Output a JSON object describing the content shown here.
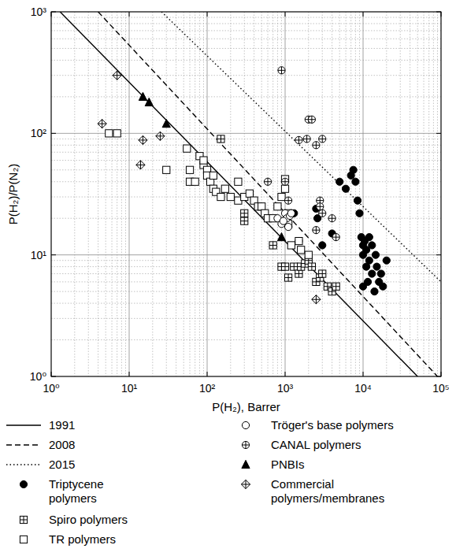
{
  "chart_data": {
    "type": "scatter",
    "x_label": "P(H₂), Barrer",
    "y_label": "P(H₂)/P(N₂)",
    "log": true,
    "grid": true,
    "legend": "bottom",
    "xlim": [
      1,
      100000
    ],
    "ylim": [
      1,
      1000
    ],
    "xticks": [
      {
        "value": 1,
        "label": "10⁰"
      },
      {
        "value": 10,
        "label": "10¹"
      },
      {
        "value": 100,
        "label": "10²"
      },
      {
        "value": 1000,
        "label": "10³"
      },
      {
        "value": 10000,
        "label": "10⁴"
      },
      {
        "value": 100000,
        "label": "10⁵"
      }
    ],
    "yticks": [
      {
        "value": 1,
        "label": "10⁰"
      },
      {
        "value": 10,
        "label": "10¹"
      },
      {
        "value": 100,
        "label": "10²"
      },
      {
        "value": 1000,
        "label": "10³"
      }
    ],
    "series": [
      {
        "name": "1991",
        "type": "line",
        "line_style": "solid",
        "color": "#000000",
        "x": [
          1.3,
          50000
        ],
        "values": [
          1000,
          1
        ]
      },
      {
        "name": "2008",
        "type": "line",
        "line_style": "dashed",
        "color": "#000000",
        "x": [
          4,
          90000
        ],
        "values": [
          1000,
          1
        ]
      },
      {
        "name": "2015",
        "type": "line",
        "line_style": "dotted",
        "color": "#000000",
        "x": [
          26,
          100000
        ],
        "values": [
          1000,
          6
        ]
      },
      {
        "name": "Triptycene polymers",
        "type": "scatter",
        "marker": "filled-circle",
        "color": "#000000",
        "x": [
          1300,
          1500,
          2500,
          2600,
          3000,
          4000,
          5000,
          6000,
          7000,
          7500,
          8000,
          8500,
          9000,
          9500,
          10000,
          10000,
          10500,
          11000,
          11000,
          12000,
          12000,
          13000,
          13000,
          14000,
          15000,
          16000,
          17000,
          18000,
          20000,
          11500,
          14500,
          10000
        ],
        "values": [
          22,
          13,
          24,
          20,
          12,
          15,
          40,
          35,
          45,
          50,
          40,
          28,
          22,
          14,
          10,
          12,
          13,
          8,
          11,
          14,
          9,
          12,
          7,
          5,
          8,
          6,
          7,
          5.5,
          9,
          6,
          10,
          5.5
        ]
      },
      {
        "name": "Spiro polymers",
        "type": "scatter",
        "marker": "square-cross",
        "color": "#000000",
        "x": [
          150,
          300,
          300,
          700,
          900,
          1000,
          1100,
          1300,
          1500,
          1600,
          1800,
          2000,
          2200,
          2500,
          2800,
          3500,
          4000,
          4500,
          3000
        ],
        "values": [
          90,
          19,
          22,
          12,
          8,
          8,
          6.5,
          8,
          7,
          8,
          8.5,
          9,
          8,
          6,
          6.5,
          5.5,
          5,
          5.5,
          7
        ]
      },
      {
        "name": "TR polymers",
        "type": "scatter",
        "marker": "square",
        "color": "#000000",
        "x": [
          5.5,
          7,
          30,
          55,
          60,
          60,
          70,
          80,
          90,
          100,
          100,
          110,
          120,
          130,
          150,
          170,
          200,
          250,
          300,
          350,
          400,
          450,
          500,
          550,
          600,
          700,
          800,
          900,
          1000,
          1000,
          1100,
          1500,
          1600,
          2000,
          1200,
          1100,
          250,
          90,
          120
        ],
        "values": [
          100,
          100,
          50,
          75,
          50,
          40,
          40,
          65,
          55,
          50,
          45,
          40,
          35,
          33,
          30,
          35,
          30,
          28,
          30,
          32,
          28,
          25,
          25,
          22,
          20,
          20,
          25,
          30,
          42,
          35,
          18,
          13,
          11,
          10,
          12,
          22,
          40,
          60,
          45
        ]
      },
      {
        "name": "Tröger's base polymers",
        "type": "scatter",
        "marker": "circle",
        "color": "#000000",
        "x": [
          800,
          900,
          1000,
          1050,
          1100,
          1150,
          950,
          1200
        ],
        "values": [
          20,
          18,
          22,
          20,
          17,
          21,
          19,
          22
        ]
      },
      {
        "name": "CANAL polymers",
        "type": "scatter",
        "marker": "circle-cross",
        "color": "#000000",
        "x": [
          900,
          2000,
          2200,
          1900,
          3000,
          2500,
          1500,
          2800,
          3000,
          4000,
          4500,
          2500,
          1000,
          1100,
          600,
          2800
        ],
        "values": [
          330,
          130,
          130,
          90,
          90,
          80,
          88,
          28,
          22,
          20,
          14,
          16,
          40,
          28,
          40,
          25
        ]
      },
      {
        "name": "PNBIs",
        "type": "scatter",
        "marker": "filled-triangle",
        "color": "#000000",
        "x": [
          15,
          18,
          30,
          900
        ],
        "values": [
          200,
          180,
          120,
          14
        ]
      },
      {
        "name": "Commercial polymers/membranes",
        "type": "scatter",
        "marker": "diamond-cross",
        "color": "#000000",
        "x": [
          7,
          4.5,
          14,
          15,
          25,
          2500
        ],
        "values": [
          300,
          120,
          55,
          88,
          95,
          4.3
        ]
      }
    ]
  }
}
